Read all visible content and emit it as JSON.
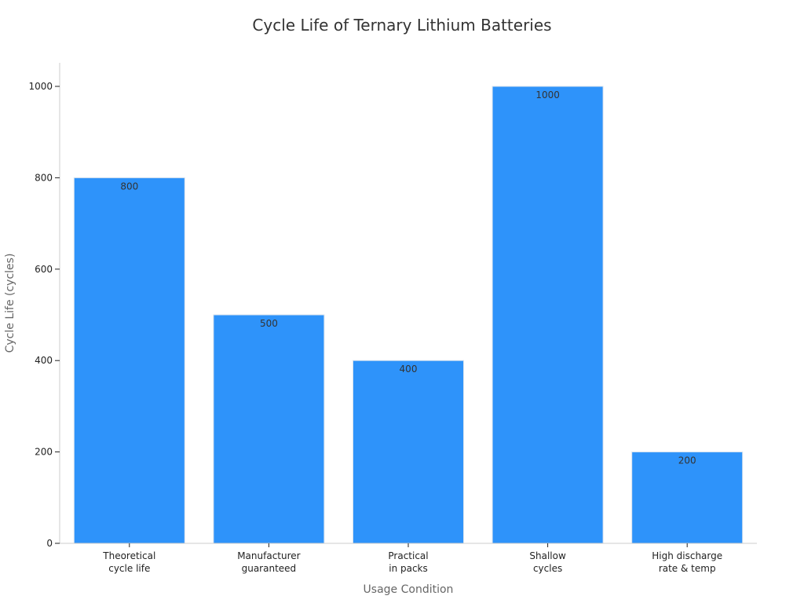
{
  "chart_data": {
    "type": "bar",
    "title": "Cycle Life of Ternary Lithium Batteries",
    "xlabel": "Usage Condition",
    "ylabel": "Cycle Life (cycles)",
    "categories": [
      [
        "Theoretical",
        "cycle life"
      ],
      [
        "Manufacturer",
        "guaranteed"
      ],
      [
        "Practical",
        "in packs"
      ],
      [
        "Shallow",
        "cycles"
      ],
      [
        "High discharge",
        "rate & temp"
      ]
    ],
    "values": [
      800,
      500,
      400,
      1000,
      200
    ],
    "data_labels": [
      "800",
      "500",
      "400",
      "1000",
      "200"
    ],
    "ylim": [
      0,
      1050
    ],
    "yticks": [
      0,
      200,
      400,
      600,
      800,
      1000
    ],
    "grid": false,
    "legend": "none",
    "colors": {
      "bar": "#2e93fa",
      "bar_edge": "#d8e3ee",
      "axis": "#cccccc",
      "text": "#222222"
    }
  }
}
